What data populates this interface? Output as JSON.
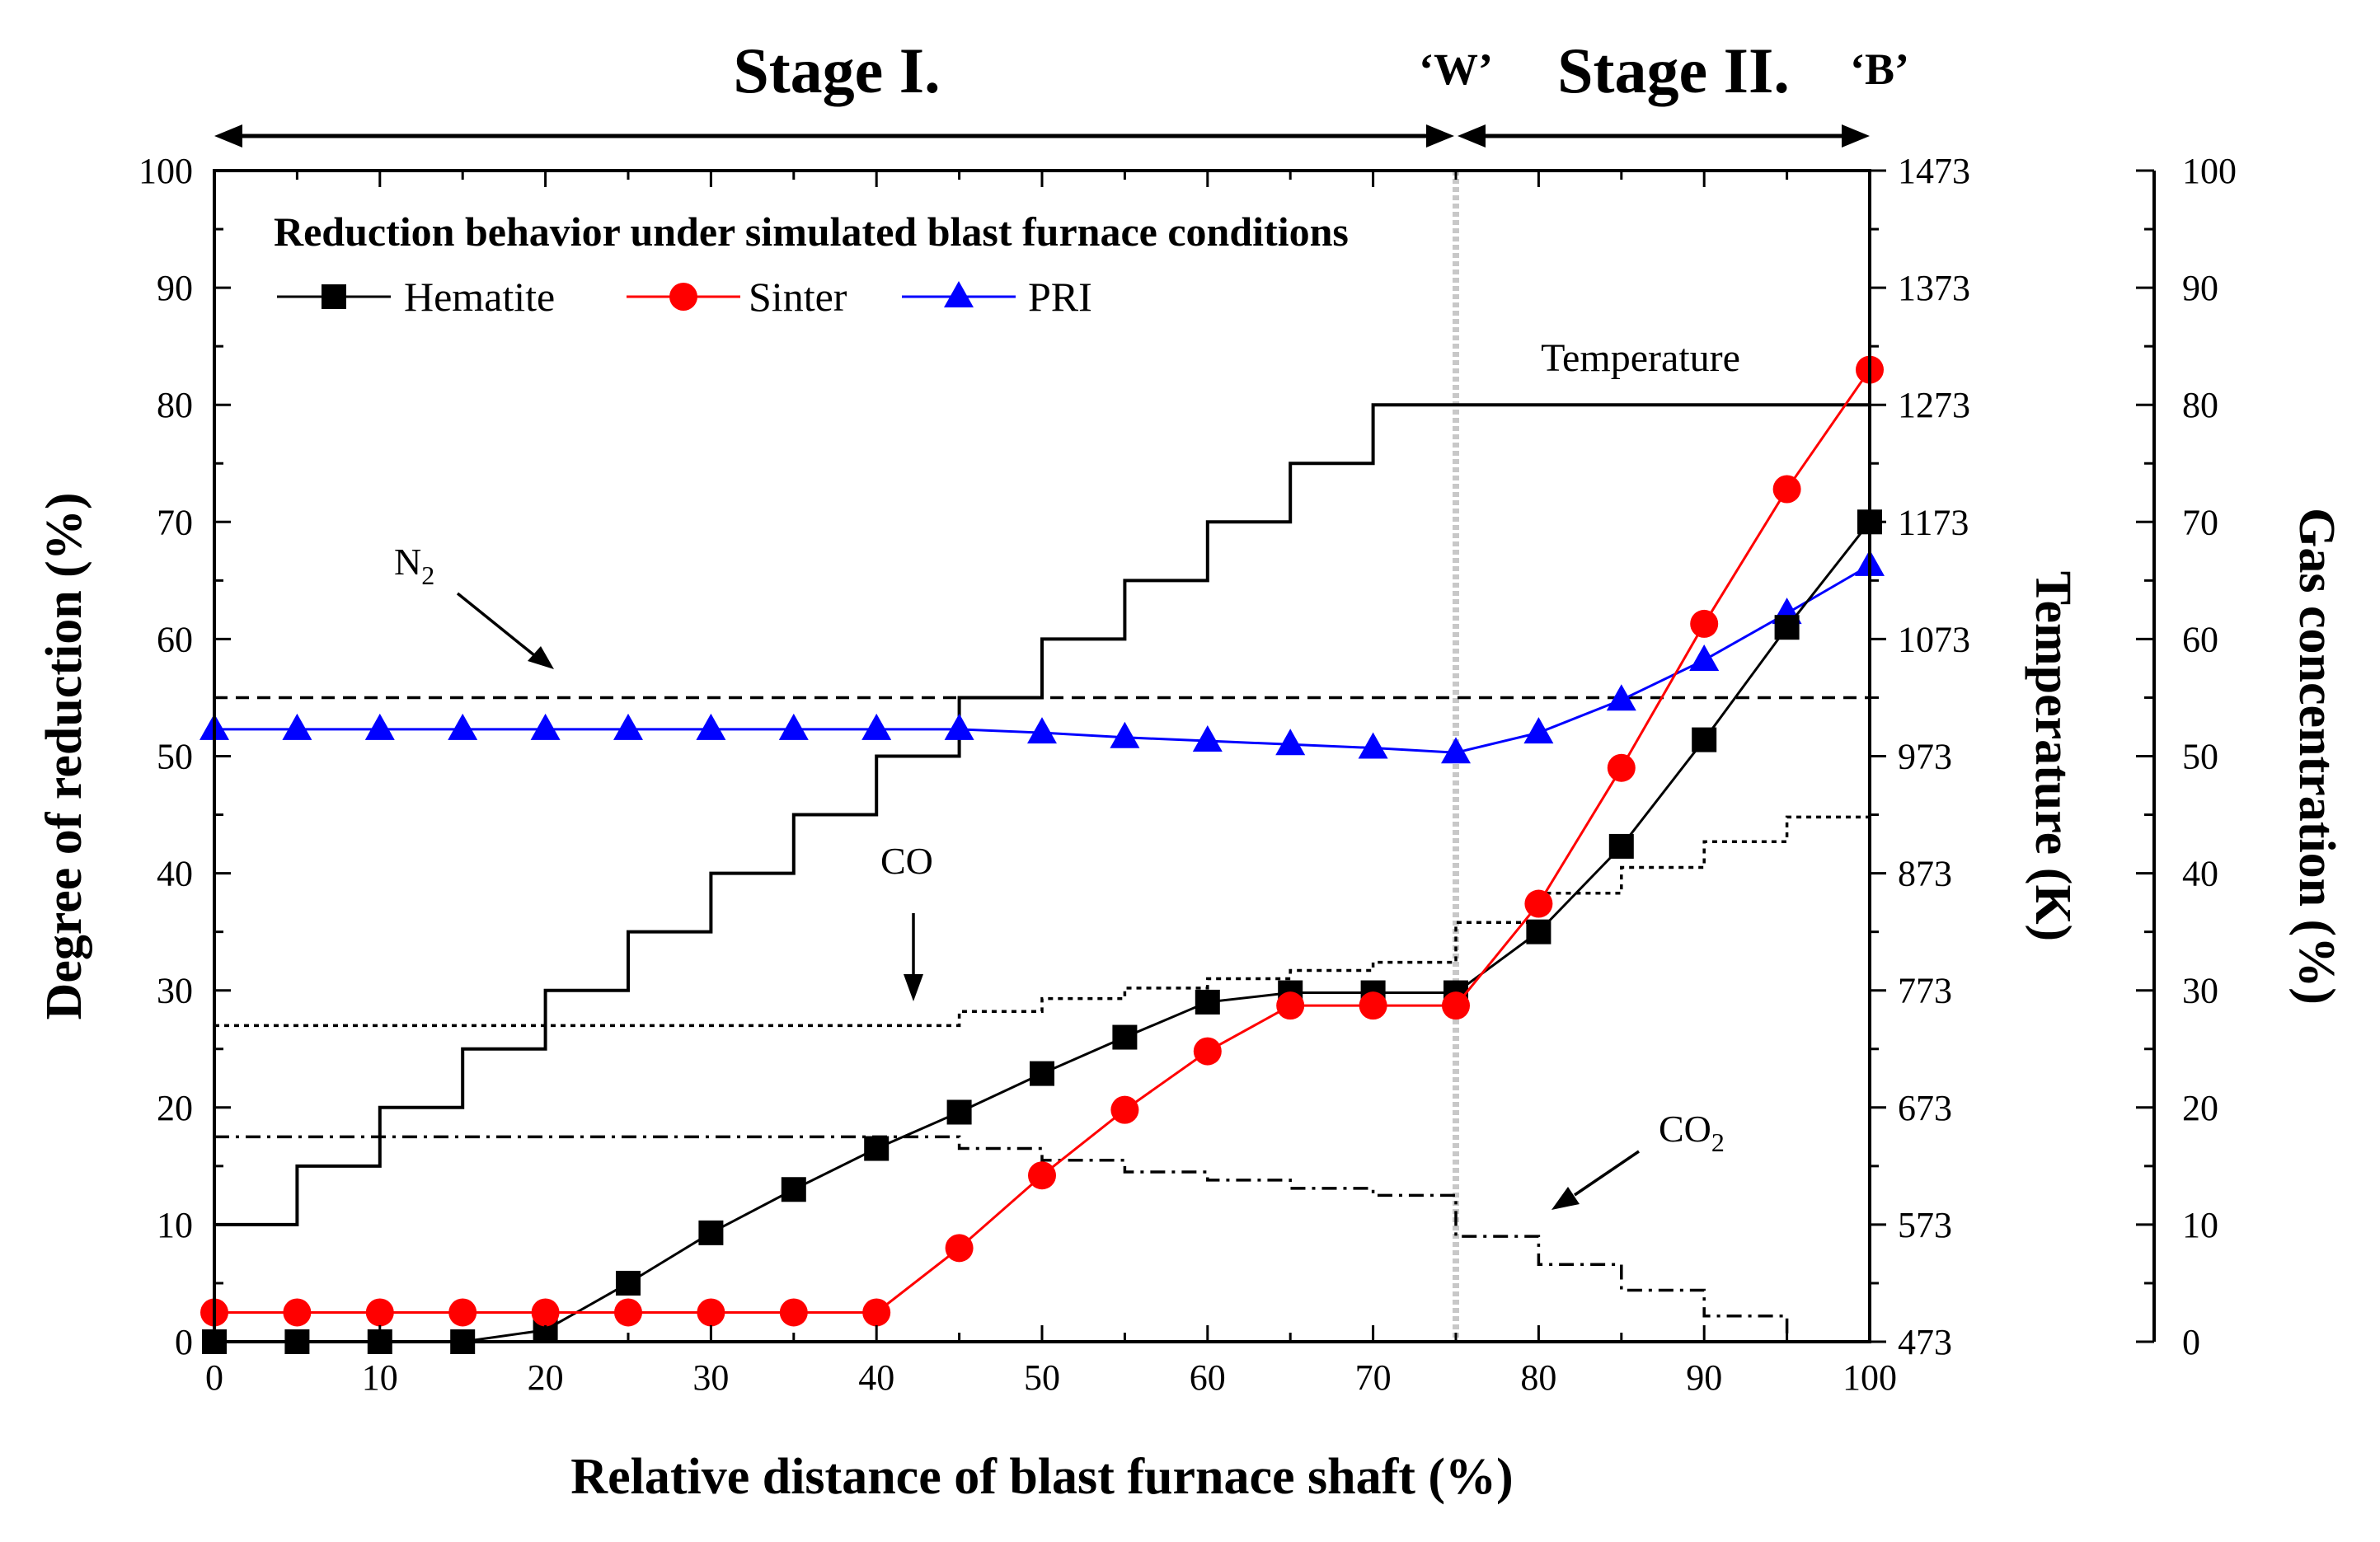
{
  "chart_data": {
    "type": "line",
    "title": "Reduction behavior under simulated blast furnace conditions",
    "stages": {
      "stage1_label": "Stage I.",
      "stage2_label": "Stage II.",
      "marker_w": "‘W’",
      "marker_b": "‘B’",
      "boundary_x": 75
    },
    "xlabel": "Relative distance of blast furnace shaft (%)",
    "ylabel_left": "Degree of reduction (%)",
    "ylabel_right1": "Temperature (K)",
    "ylabel_right2": "Gas concentration (%)",
    "xlim": [
      0,
      100
    ],
    "ylim_left": [
      0,
      100
    ],
    "ylim_temperature": [
      473,
      1473
    ],
    "ylim_gas": [
      0,
      100
    ],
    "x_ticks": [
      0,
      10,
      20,
      30,
      40,
      50,
      60,
      70,
      80,
      90,
      100
    ],
    "y_ticks_left": [
      0,
      10,
      20,
      30,
      40,
      50,
      60,
      70,
      80,
      90,
      100
    ],
    "y_ticks_temperature": [
      473,
      573,
      673,
      773,
      873,
      973,
      1073,
      1173,
      1273,
      1373,
      1473
    ],
    "y_ticks_gas": [
      0,
      10,
      20,
      30,
      40,
      50,
      60,
      70,
      80,
      90,
      100
    ],
    "x": [
      0,
      5,
      10,
      15,
      20,
      25,
      30,
      35,
      40,
      45,
      50,
      55,
      60,
      65,
      70,
      75,
      80,
      85,
      90,
      95,
      100
    ],
    "series": [
      {
        "name": "Hematite",
        "color": "#000000",
        "marker": "square",
        "values": [
          0,
          0,
          0,
          0,
          1,
          5,
          9.3,
          13,
          16.5,
          19.6,
          22.9,
          26,
          29,
          29.8,
          29.8,
          29.8,
          35,
          42.3,
          51.4,
          61,
          70
        ]
      },
      {
        "name": "Sinter",
        "color": "#ff0000",
        "marker": "circle",
        "values": [
          2.5,
          2.5,
          2.5,
          2.5,
          2.5,
          2.5,
          2.5,
          2.5,
          2.5,
          8,
          14.2,
          19.8,
          24.8,
          28.7,
          28.7,
          28.7,
          37.4,
          49,
          61.3,
          72.8,
          83
        ]
      },
      {
        "name": "PRI",
        "color": "#0000ff",
        "marker": "triangle",
        "values": [
          52.3,
          52.3,
          52.3,
          52.3,
          52.3,
          52.3,
          52.3,
          52.3,
          52.3,
          52.3,
          52,
          51.6,
          51.3,
          51,
          50.7,
          50.3,
          52,
          54.8,
          58.2,
          62.2,
          66.3
        ]
      }
    ],
    "temperature_profile": {
      "label": "Temperature",
      "color": "#000000",
      "steps": [
        {
          "x0": 0,
          "x1": 5,
          "value": 573
        },
        {
          "x0": 5,
          "x1": 10,
          "value": 623
        },
        {
          "x0": 10,
          "x1": 15,
          "value": 673
        },
        {
          "x0": 15,
          "x1": 20,
          "value": 723
        },
        {
          "x0": 20,
          "x1": 25,
          "value": 773
        },
        {
          "x0": 25,
          "x1": 30,
          "value": 823
        },
        {
          "x0": 30,
          "x1": 35,
          "value": 873
        },
        {
          "x0": 35,
          "x1": 40,
          "value": 923
        },
        {
          "x0": 40,
          "x1": 45,
          "value": 973
        },
        {
          "x0": 45,
          "x1": 50,
          "value": 1023
        },
        {
          "x0": 50,
          "x1": 55,
          "value": 1073
        },
        {
          "x0": 55,
          "x1": 60,
          "value": 1123
        },
        {
          "x0": 60,
          "x1": 65,
          "value": 1173
        },
        {
          "x0": 65,
          "x1": 70,
          "value": 1223
        },
        {
          "x0": 70,
          "x1": 100,
          "value": 1273
        }
      ]
    },
    "gas_profiles": [
      {
        "name": "N2",
        "label_main": "N",
        "label_sub": "2",
        "style": "dashed",
        "steps": [
          {
            "x0": 0,
            "x1": 100,
            "value": 55
          }
        ]
      },
      {
        "name": "CO",
        "label_main": "CO",
        "label_sub": "",
        "style": "dotted",
        "steps": [
          {
            "x0": 0,
            "x1": 45,
            "value": 27
          },
          {
            "x0": 45,
            "x1": 50,
            "value": 28.2
          },
          {
            "x0": 50,
            "x1": 55,
            "value": 29.3
          },
          {
            "x0": 55,
            "x1": 60,
            "value": 30.2
          },
          {
            "x0": 60,
            "x1": 65,
            "value": 31
          },
          {
            "x0": 65,
            "x1": 70,
            "value": 31.7
          },
          {
            "x0": 70,
            "x1": 75,
            "value": 32.4
          },
          {
            "x0": 75,
            "x1": 80,
            "value": 35.8
          },
          {
            "x0": 80,
            "x1": 85,
            "value": 38.3
          },
          {
            "x0": 85,
            "x1": 90,
            "value": 40.5
          },
          {
            "x0": 90,
            "x1": 95,
            "value": 42.7
          },
          {
            "x0": 95,
            "x1": 100,
            "value": 44.8
          }
        ]
      },
      {
        "name": "CO2",
        "label_main": "CO",
        "label_sub": "2",
        "style": "dashdot",
        "steps": [
          {
            "x0": 0,
            "x1": 45,
            "value": 17.5
          },
          {
            "x0": 45,
            "x1": 50,
            "value": 16.5
          },
          {
            "x0": 50,
            "x1": 55,
            "value": 15.5
          },
          {
            "x0": 55,
            "x1": 60,
            "value": 14.5
          },
          {
            "x0": 60,
            "x1": 65,
            "value": 13.8
          },
          {
            "x0": 65,
            "x1": 70,
            "value": 13.1
          },
          {
            "x0": 70,
            "x1": 75,
            "value": 12.5
          },
          {
            "x0": 75,
            "x1": 80,
            "value": 9
          },
          {
            "x0": 80,
            "x1": 85,
            "value": 6.6
          },
          {
            "x0": 85,
            "x1": 90,
            "value": 4.4
          },
          {
            "x0": 90,
            "x1": 95,
            "value": 2.2
          },
          {
            "x0": 95,
            "x1": 100,
            "value": 0
          }
        ]
      }
    ],
    "legend_position": "top-left"
  }
}
